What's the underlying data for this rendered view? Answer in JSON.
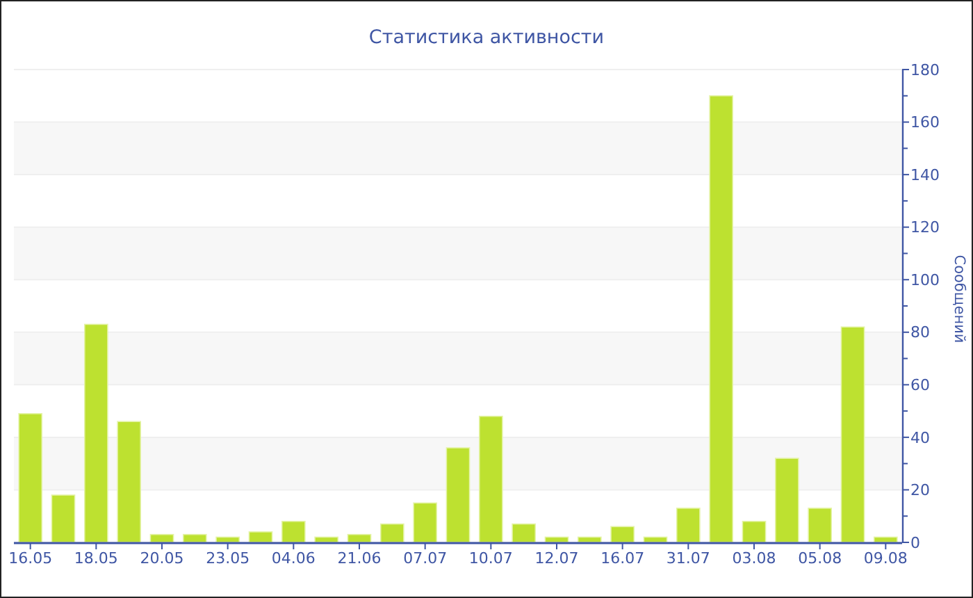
{
  "chart_data": {
    "type": "bar",
    "title": "Статистика активности",
    "ylabel": "Сообщений",
    "categories": [
      "16.05",
      null,
      "18.05",
      null,
      "20.05",
      null,
      "23.05",
      null,
      "04.06",
      null,
      "21.06",
      null,
      "07.07",
      null,
      "10.07",
      null,
      "12.07",
      null,
      "16.07",
      null,
      "31.07",
      null,
      "03.08",
      null,
      "05.08",
      null,
      "09.08"
    ],
    "values": [
      49,
      18,
      83,
      46,
      3,
      3,
      2,
      4,
      8,
      2,
      3,
      7,
      15,
      36,
      48,
      7,
      2,
      2,
      6,
      2,
      13,
      170,
      8,
      32,
      13,
      82,
      2
    ],
    "color": "#bde130",
    "ylim": [
      0,
      180
    ],
    "yticks": [
      0,
      {
        "value": 10,
        "label": null
      },
      20,
      {
        "value": 30,
        "label": null
      },
      40,
      {
        "value": 50,
        "label": null
      },
      60,
      {
        "value": 70,
        "label": null
      },
      80,
      {
        "value": 90,
        "label": null
      },
      100,
      {
        "value": 110,
        "label": null
      },
      120,
      {
        "value": 130,
        "label": null
      },
      140,
      {
        "value": 150,
        "label": null
      },
      160,
      {
        "value": 170,
        "label": null
      },
      180
    ],
    "grid": "y"
  }
}
